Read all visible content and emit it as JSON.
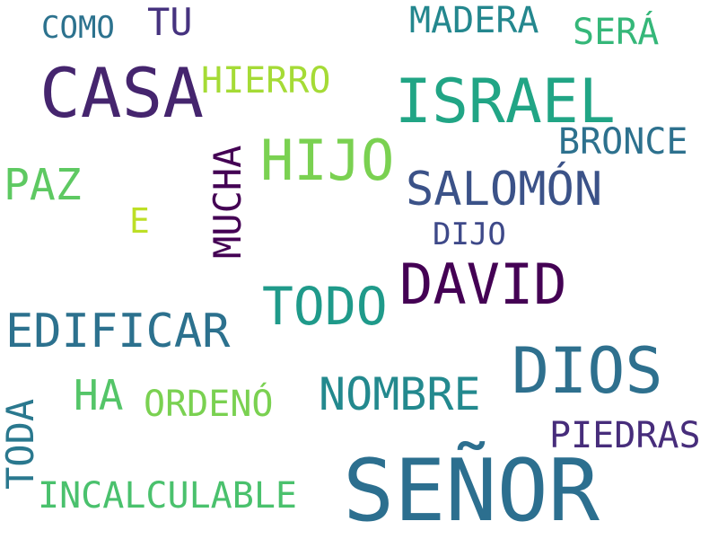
{
  "words": {
    "senor": {
      "text": "SEÑOR",
      "color": "#2c6f8f"
    },
    "casa": {
      "text": "CASA",
      "color": "#45256e"
    },
    "israel": {
      "text": "ISRAEL",
      "color": "#21a585"
    },
    "dios": {
      "text": "DIOS",
      "color": "#2e708e"
    },
    "david": {
      "text": "DAVID",
      "color": "#440154"
    },
    "hijo": {
      "text": "HIJO",
      "color": "#7ad151"
    },
    "todo": {
      "text": "TODO",
      "color": "#1f9a8a"
    },
    "edificar": {
      "text": "EDIFICAR",
      "color": "#2c718e"
    },
    "salomon": {
      "text": "SALOMÓN",
      "color": "#3b5288"
    },
    "nombre": {
      "text": "NOMBRE",
      "color": "#23898e"
    },
    "paz": {
      "text": "PAZ",
      "color": "#5ec962"
    },
    "hierro": {
      "text": "HIERRO",
      "color": "#a5db36"
    },
    "madera": {
      "text": "MADERA",
      "color": "#24878e"
    },
    "bronce": {
      "text": "BRONCE",
      "color": "#2d718e"
    },
    "ha": {
      "text": "HA",
      "color": "#54c568"
    },
    "ordeno": {
      "text": "ORDENÓ",
      "color": "#7ad151"
    },
    "piedras": {
      "text": "PIEDRAS",
      "color": "#472d7b"
    },
    "incalculable": {
      "text": "INCALCULABLE",
      "color": "#4ac16d"
    },
    "sera": {
      "text": "SERÁ",
      "color": "#35b779"
    },
    "tu": {
      "text": "TU",
      "color": "#46337f"
    },
    "como": {
      "text": "COMO",
      "color": "#2c728e"
    },
    "e": {
      "text": "E",
      "color": "#bddf26"
    },
    "dijo": {
      "text": "DIJO",
      "color": "#3e4989"
    },
    "mucha": {
      "text": "MUCHA",
      "color": "#440154"
    },
    "toda": {
      "text": "TODA",
      "color": "#2a788e"
    }
  }
}
